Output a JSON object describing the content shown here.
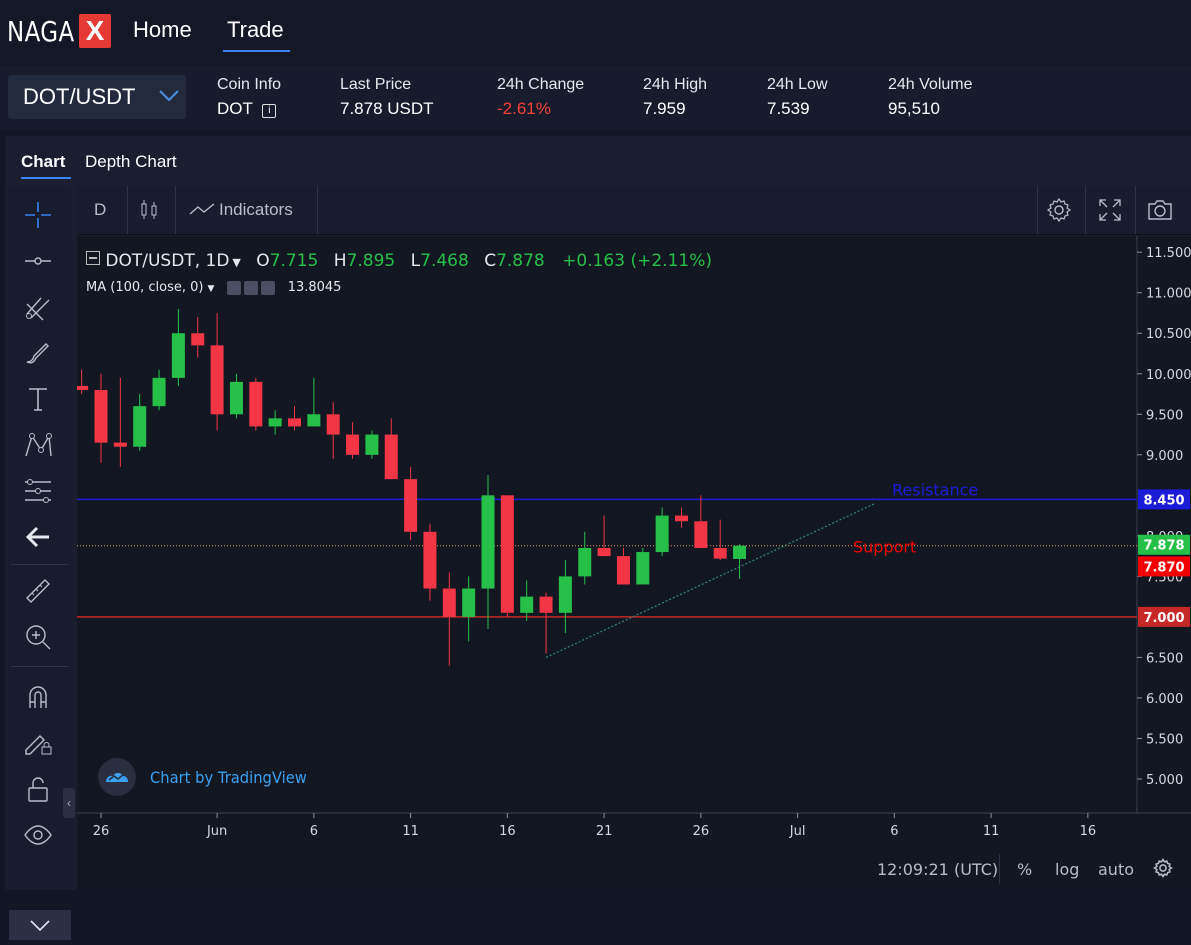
{
  "nav": {
    "logo_text": "NAGA",
    "logo_badge": "X",
    "links": [
      "Home",
      "Trade"
    ],
    "active": "Trade"
  },
  "ticker": {
    "pair": "DOT/USDT",
    "coin_info_label": "Coin Info",
    "coin_info_value": "DOT",
    "last_price_label": "Last Price",
    "last_price_value": "7.878 USDT",
    "change_label": "24h Change",
    "change_value": "-2.61%",
    "high_label": "24h High",
    "high_value": "7.959",
    "low_label": "24h Low",
    "low_value": "7.539",
    "volume_label": "24h Volume",
    "volume_value": "95,510"
  },
  "tabs": {
    "chart": "Chart",
    "depth": "Depth Chart"
  },
  "toolbar": {
    "interval": "D",
    "indicators": "Indicators"
  },
  "legend": {
    "symbol": "DOT/USDT, 1D",
    "open_label": "O",
    "open": "7.715",
    "high_label": "H",
    "high": "7.895",
    "low_label": "L",
    "low": "7.468",
    "close_label": "C",
    "close": "7.878",
    "change": "+0.163 (+2.11%)",
    "ma_label": "MA (100, close, 0)",
    "ma_value": "13.8045"
  },
  "watermark": "Chart by TradingView",
  "status": {
    "time": "12:09:21 (UTC)",
    "percent": "%",
    "log": "log",
    "auto": "auto"
  },
  "colors": {
    "up": "#26c048",
    "down": "#f23645",
    "resistance": "#1c1cd8",
    "support": "#c62828",
    "accent": "#3b82f6"
  },
  "icons": [
    "crosshair-icon",
    "horizontal-line-icon",
    "trend-lines-icon",
    "brush-icon",
    "text-icon",
    "pattern-icon",
    "fib-icon",
    "back-arrow-icon",
    "ruler-icon",
    "zoom-icon",
    "magnet-icon",
    "lock-draw-icon",
    "unlock-icon",
    "eye-icon",
    "gear-icon",
    "fullscreen-icon",
    "camera-icon",
    "candles-icon"
  ],
  "chart_data": {
    "type": "candlestick",
    "title": "DOT/USDT, 1D",
    "y_ticks": [
      11.5,
      11.0,
      10.5,
      10.0,
      9.5,
      9.0,
      8.0,
      7.5,
      6.5,
      6.0,
      5.5,
      5.0
    ],
    "ylim": [
      4.58,
      11.7
    ],
    "x_ticks": [
      {
        "label": "26",
        "day": 0
      },
      {
        "label": "Jun",
        "day": 6
      },
      {
        "label": "6",
        "day": 11
      },
      {
        "label": "11",
        "day": 16
      },
      {
        "label": "16",
        "day": 21
      },
      {
        "label": "21",
        "day": 26
      },
      {
        "label": "26",
        "day": 31
      },
      {
        "label": "Jul",
        "day": 36
      },
      {
        "label": "6",
        "day": 41
      },
      {
        "label": "11",
        "day": 46
      },
      {
        "label": "16",
        "day": 51
      }
    ],
    "candles": [
      {
        "day": -1,
        "o": 9.85,
        "h": 10.05,
        "l": 9.75,
        "c": 9.8
      },
      {
        "day": 0,
        "o": 9.8,
        "h": 10.0,
        "l": 8.9,
        "c": 9.15
      },
      {
        "day": 1,
        "o": 9.15,
        "h": 9.95,
        "l": 8.85,
        "c": 9.1
      },
      {
        "day": 2,
        "o": 9.1,
        "h": 9.75,
        "l": 9.05,
        "c": 9.6
      },
      {
        "day": 3,
        "o": 9.6,
        "h": 10.05,
        "l": 9.55,
        "c": 9.95
      },
      {
        "day": 4,
        "o": 9.95,
        "h": 10.8,
        "l": 9.85,
        "c": 10.5
      },
      {
        "day": 5,
        "o": 10.5,
        "h": 10.7,
        "l": 10.2,
        "c": 10.35
      },
      {
        "day": 6,
        "o": 10.35,
        "h": 10.75,
        "l": 9.3,
        "c": 9.5
      },
      {
        "day": 7,
        "o": 9.5,
        "h": 10.0,
        "l": 9.45,
        "c": 9.9
      },
      {
        "day": 8,
        "o": 9.9,
        "h": 9.95,
        "l": 9.3,
        "c": 9.35
      },
      {
        "day": 9,
        "o": 9.35,
        "h": 9.55,
        "l": 9.25,
        "c": 9.45
      },
      {
        "day": 10,
        "o": 9.45,
        "h": 9.6,
        "l": 9.3,
        "c": 9.35
      },
      {
        "day": 11,
        "o": 9.35,
        "h": 9.95,
        "l": 9.35,
        "c": 9.5
      },
      {
        "day": 12,
        "o": 9.5,
        "h": 9.65,
        "l": 8.95,
        "c": 9.25
      },
      {
        "day": 13,
        "o": 9.25,
        "h": 9.4,
        "l": 8.95,
        "c": 9.0
      },
      {
        "day": 14,
        "o": 9.0,
        "h": 9.3,
        "l": 8.95,
        "c": 9.25
      },
      {
        "day": 15,
        "o": 9.25,
        "h": 9.45,
        "l": 8.7,
        "c": 8.7
      },
      {
        "day": 16,
        "o": 8.7,
        "h": 8.85,
        "l": 7.95,
        "c": 8.05
      },
      {
        "day": 17,
        "o": 8.05,
        "h": 8.15,
        "l": 7.2,
        "c": 7.35
      },
      {
        "day": 18,
        "o": 7.35,
        "h": 7.55,
        "l": 6.4,
        "c": 7.0
      },
      {
        "day": 19,
        "o": 7.0,
        "h": 7.5,
        "l": 6.7,
        "c": 7.35
      },
      {
        "day": 20,
        "o": 7.35,
        "h": 8.75,
        "l": 6.85,
        "c": 8.5
      },
      {
        "day": 21,
        "o": 8.5,
        "h": 8.5,
        "l": 7.0,
        "c": 7.05
      },
      {
        "day": 22,
        "o": 7.05,
        "h": 7.45,
        "l": 6.95,
        "c": 7.25
      },
      {
        "day": 23,
        "o": 7.25,
        "h": 7.3,
        "l": 6.55,
        "c": 7.05
      },
      {
        "day": 24,
        "o": 7.05,
        "h": 7.7,
        "l": 6.8,
        "c": 7.5
      },
      {
        "day": 25,
        "o": 7.5,
        "h": 8.05,
        "l": 7.4,
        "c": 7.85
      },
      {
        "day": 26,
        "o": 7.85,
        "h": 8.25,
        "l": 7.75,
        "c": 7.75
      },
      {
        "day": 27,
        "o": 7.75,
        "h": 7.85,
        "l": 7.4,
        "c": 7.4
      },
      {
        "day": 28,
        "o": 7.4,
        "h": 7.85,
        "l": 7.4,
        "c": 7.8
      },
      {
        "day": 29,
        "o": 7.8,
        "h": 8.35,
        "l": 7.75,
        "c": 8.25
      },
      {
        "day": 30,
        "o": 8.25,
        "h": 8.35,
        "l": 8.1,
        "c": 8.18
      },
      {
        "day": 31,
        "o": 8.18,
        "h": 8.5,
        "l": 7.85,
        "c": 7.85
      },
      {
        "day": 32,
        "o": 7.85,
        "h": 8.2,
        "l": 7.7,
        "c": 7.72
      },
      {
        "day": 33,
        "o": 7.715,
        "h": 7.895,
        "l": 7.468,
        "c": 7.878
      }
    ],
    "hlines": [
      {
        "value": 8.45,
        "label": "Resistance",
        "color": "#1c1cd8"
      },
      {
        "value": 7.0,
        "color": "#c62828"
      }
    ],
    "current_price": {
      "value": 7.878,
      "color": "#26c048"
    },
    "support_label": {
      "text": "Support",
      "value": 7.87,
      "color": "#f20000"
    },
    "trendline": {
      "start": {
        "day": 23,
        "value": 6.5
      },
      "end": {
        "day": 40,
        "value": 8.4
      }
    },
    "price_line": 7.878
  }
}
